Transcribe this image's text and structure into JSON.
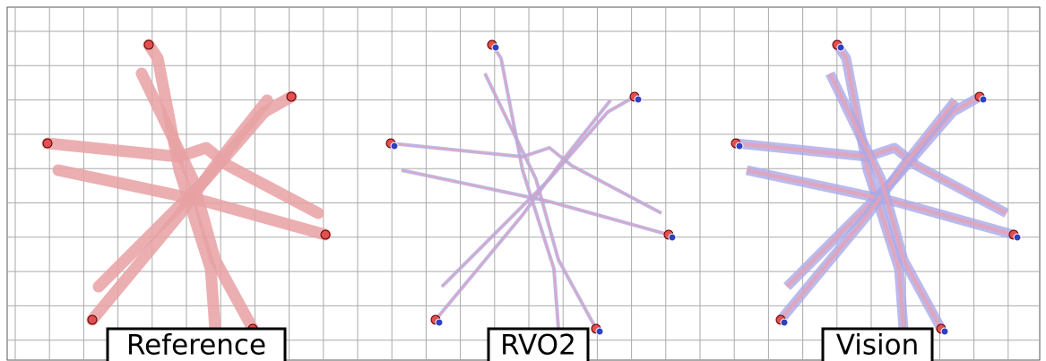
{
  "panels": [
    {
      "label": "Reference"
    },
    {
      "label": "RVO2"
    },
    {
      "label": "Vision"
    }
  ]
}
